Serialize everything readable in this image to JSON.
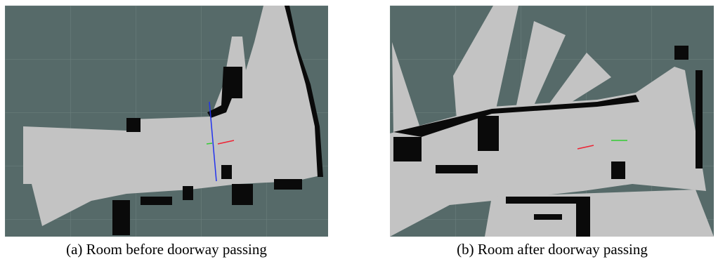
{
  "figures": [
    {
      "caption": "(a) Room before doorway passing"
    },
    {
      "caption": "(b) Room after doorway passing"
    }
  ]
}
